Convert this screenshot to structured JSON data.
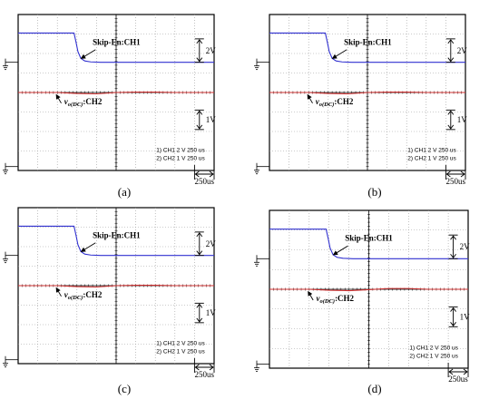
{
  "chart_data": [
    {
      "type": "line",
      "caption": "(a)",
      "time_per_div": "250us",
      "ch1_scale": "2V",
      "ch2_scale": "1V",
      "info_lines": [
        "1) CH1  2  V    250 us",
        "2) CH2  1  V    250 us"
      ],
      "annotation_ch1": "Skip-En:CH1",
      "annotation_ch2_sub": "o(DC)",
      "annotation_ch2_suffix": ":CH2",
      "series": [
        {
          "channel": "CH1",
          "color": "#3030d0",
          "x_div": [
            0,
            2.85,
            2.95,
            3.05,
            3.2,
            3.4,
            3.7,
            4.2,
            5,
            10
          ],
          "y_div": [
            7.05,
            7.05,
            6.6,
            6.1,
            5.75,
            5.62,
            5.57,
            5.55,
            5.55,
            5.55
          ]
        },
        {
          "channel": "CH2",
          "color": "#d03030",
          "x_div": [
            0,
            1,
            2,
            3,
            4,
            5,
            6,
            7,
            8,
            9,
            10
          ],
          "y_div": [
            4.0,
            4.0,
            4.0,
            3.95,
            3.93,
            4.0,
            4.02,
            4.02,
            4.0,
            4.0,
            4.0
          ]
        }
      ]
    },
    {
      "type": "line",
      "caption": "(b)",
      "time_per_div": "250us",
      "ch1_scale": "2V",
      "ch2_scale": "1V",
      "info_lines": [
        "1) CH1  2  V    250 us",
        "2) CH2  1  V    250 us"
      ],
      "annotation_ch1": "Skip-En:CH1",
      "annotation_ch2_sub": "o(DC)",
      "annotation_ch2_suffix": ":CH2",
      "series": [
        {
          "channel": "CH1",
          "color": "#3030d0",
          "x_div": [
            0,
            2.85,
            2.95,
            3.05,
            3.2,
            3.4,
            3.7,
            4.2,
            5,
            10
          ],
          "y_div": [
            7.05,
            7.05,
            6.6,
            6.1,
            5.75,
            5.62,
            5.57,
            5.55,
            5.55,
            5.55
          ]
        },
        {
          "channel": "CH2",
          "color": "#d03030",
          "x_div": [
            0,
            1,
            2,
            3,
            4,
            5,
            6,
            7,
            8,
            9,
            10
          ],
          "y_div": [
            4.0,
            4.0,
            4.0,
            3.95,
            3.93,
            4.0,
            4.02,
            4.02,
            4.0,
            4.0,
            4.0
          ]
        }
      ]
    },
    {
      "type": "line",
      "caption": "(c)",
      "time_per_div": "250us",
      "ch1_scale": "2V",
      "ch2_scale": "1V",
      "info_lines": [
        "1) CH1  2  V    250 us",
        "2) CH2  1  V    250 us"
      ],
      "annotation_ch1": "Skip-En:CH1",
      "annotation_ch2_sub": "o(DC)",
      "annotation_ch2_suffix": ":CH2",
      "series": [
        {
          "channel": "CH1",
          "color": "#3030d0",
          "x_div": [
            0,
            2.85,
            2.95,
            3.05,
            3.2,
            3.4,
            3.7,
            4.2,
            5,
            10
          ],
          "y_div": [
            7.05,
            7.05,
            6.6,
            6.1,
            5.75,
            5.62,
            5.57,
            5.55,
            5.55,
            5.55
          ]
        },
        {
          "channel": "CH2",
          "color": "#d03030",
          "x_div": [
            0,
            1,
            2,
            3,
            4,
            5,
            6,
            7,
            8,
            9,
            10
          ],
          "y_div": [
            4.0,
            4.0,
            4.0,
            3.95,
            3.93,
            4.0,
            4.02,
            4.02,
            4.0,
            4.0,
            4.0
          ]
        }
      ]
    },
    {
      "type": "line",
      "caption": "(d)",
      "time_per_div": "250us",
      "ch1_scale": "2V",
      "ch2_scale": "1V",
      "info_lines": [
        "1) CH1  2  V    250 us",
        "2) CH2  1  V    250 us"
      ],
      "annotation_ch1": "Skip-En:CH1",
      "annotation_ch2_sub": "o(DC)",
      "annotation_ch2_suffix": ":CH2",
      "series": [
        {
          "channel": "CH1",
          "color": "#3030d0",
          "x_div": [
            0,
            2.85,
            2.95,
            3.05,
            3.2,
            3.4,
            3.7,
            4.2,
            5,
            10
          ],
          "y_div": [
            7.05,
            7.05,
            6.6,
            6.1,
            5.75,
            5.62,
            5.57,
            5.55,
            5.55,
            5.55
          ]
        },
        {
          "channel": "CH2",
          "color": "#d03030",
          "x_div": [
            0,
            1,
            2,
            3,
            4,
            5,
            6,
            7,
            8,
            9,
            10
          ],
          "y_div": [
            4.0,
            4.0,
            4.0,
            3.95,
            3.93,
            3.98,
            4.04,
            4.04,
            4.0,
            4.0,
            4.0
          ]
        }
      ]
    }
  ]
}
